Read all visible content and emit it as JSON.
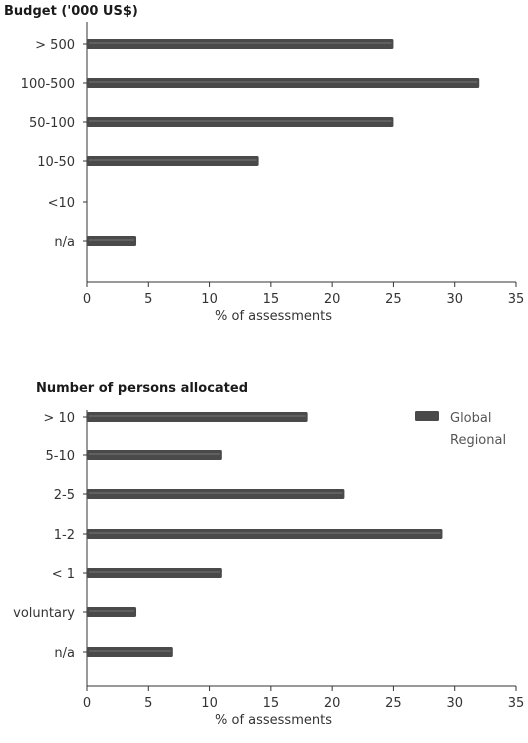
{
  "chart_data": [
    {
      "type": "bar",
      "orientation": "horizontal",
      "title": "Budget ('000 US$)",
      "categories": [
        "> 500",
        "100-500",
        "50-100",
        "10-50",
        "<10",
        "n/a"
      ],
      "series": [
        {
          "name": "Global",
          "values": [
            25,
            32,
            25,
            14,
            0,
            4
          ]
        },
        {
          "name": "Regional",
          "values": [
            null,
            null,
            null,
            null,
            null,
            null
          ]
        }
      ],
      "xlabel": "% of assessments",
      "xlim": [
        0,
        35
      ],
      "xticks": [
        0,
        5,
        10,
        15,
        20,
        25,
        30,
        35
      ],
      "colors": {
        "Global": "#4a4a4a"
      }
    },
    {
      "type": "bar",
      "orientation": "horizontal",
      "title": "Number of persons allocated",
      "categories": [
        "> 10",
        "5-10",
        "2-5",
        "1-2",
        "< 1",
        "voluntary",
        "n/a"
      ],
      "series": [
        {
          "name": "Global",
          "values": [
            18,
            11,
            21,
            29,
            11,
            4,
            7
          ]
        },
        {
          "name": "Regional",
          "values": [
            null,
            null,
            null,
            null,
            null,
            null,
            null
          ]
        }
      ],
      "xlabel": "% of assessments",
      "xlim": [
        0,
        35
      ],
      "xticks": [
        0,
        5,
        10,
        15,
        20,
        25,
        30,
        35
      ],
      "legend": {
        "position": "top-right",
        "entries": [
          "Global",
          "Regional"
        ]
      },
      "colors": {
        "Global": "#4a4a4a",
        "Regional": "#eeeeee"
      }
    }
  ]
}
